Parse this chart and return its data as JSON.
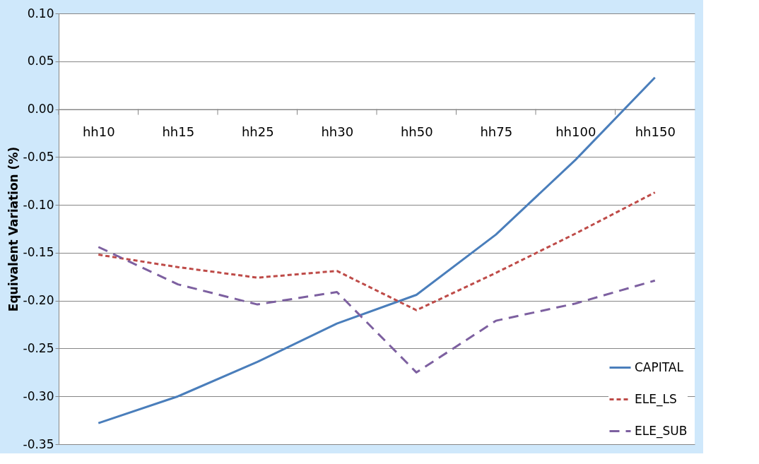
{
  "chart_data": {
    "type": "line",
    "ylabel": "Equivalent Variation (%)",
    "categories": [
      "hh10",
      "hh15",
      "hh25",
      "hh30",
      "hh50",
      "hh75",
      "hh100",
      "hh150"
    ],
    "series": [
      {
        "name": "CAPITAL",
        "color": "#4a7ebb",
        "line_style": "solid",
        "values": [
          -0.328,
          -0.3,
          -0.264,
          -0.224,
          -0.194,
          -0.131,
          -0.053,
          0.033
        ]
      },
      {
        "name": "ELE_LS",
        "color": "#be4b48",
        "line_style": "dotted",
        "values": [
          -0.152,
          -0.165,
          -0.176,
          -0.169,
          -0.21,
          -0.171,
          -0.13,
          -0.087
        ]
      },
      {
        "name": "ELE_SUB",
        "color": "#7d60a0",
        "line_style": "dashed",
        "values": [
          -0.144,
          -0.183,
          -0.204,
          -0.191,
          -0.275,
          -0.221,
          -0.203,
          -0.179
        ]
      }
    ],
    "ylim": [
      -0.35,
      0.1
    ],
    "yticks": [
      {
        "value": -0.35,
        "label": "-0.35"
      },
      {
        "value": -0.3,
        "label": "-0.30"
      },
      {
        "value": -0.25,
        "label": "-0.25"
      },
      {
        "value": -0.2,
        "label": "-0.20"
      },
      {
        "value": -0.15,
        "label": "-0.15"
      },
      {
        "value": -0.1,
        "label": "-0.10"
      },
      {
        "value": -0.05,
        "label": "-0.05"
      },
      {
        "value": 0,
        "label": "0.00"
      },
      {
        "value": 0.05,
        "label": "0.05"
      },
      {
        "value": 0.1,
        "label": "0.10"
      }
    ],
    "grid": "y",
    "legend": "bottom right",
    "marker": "none"
  }
}
